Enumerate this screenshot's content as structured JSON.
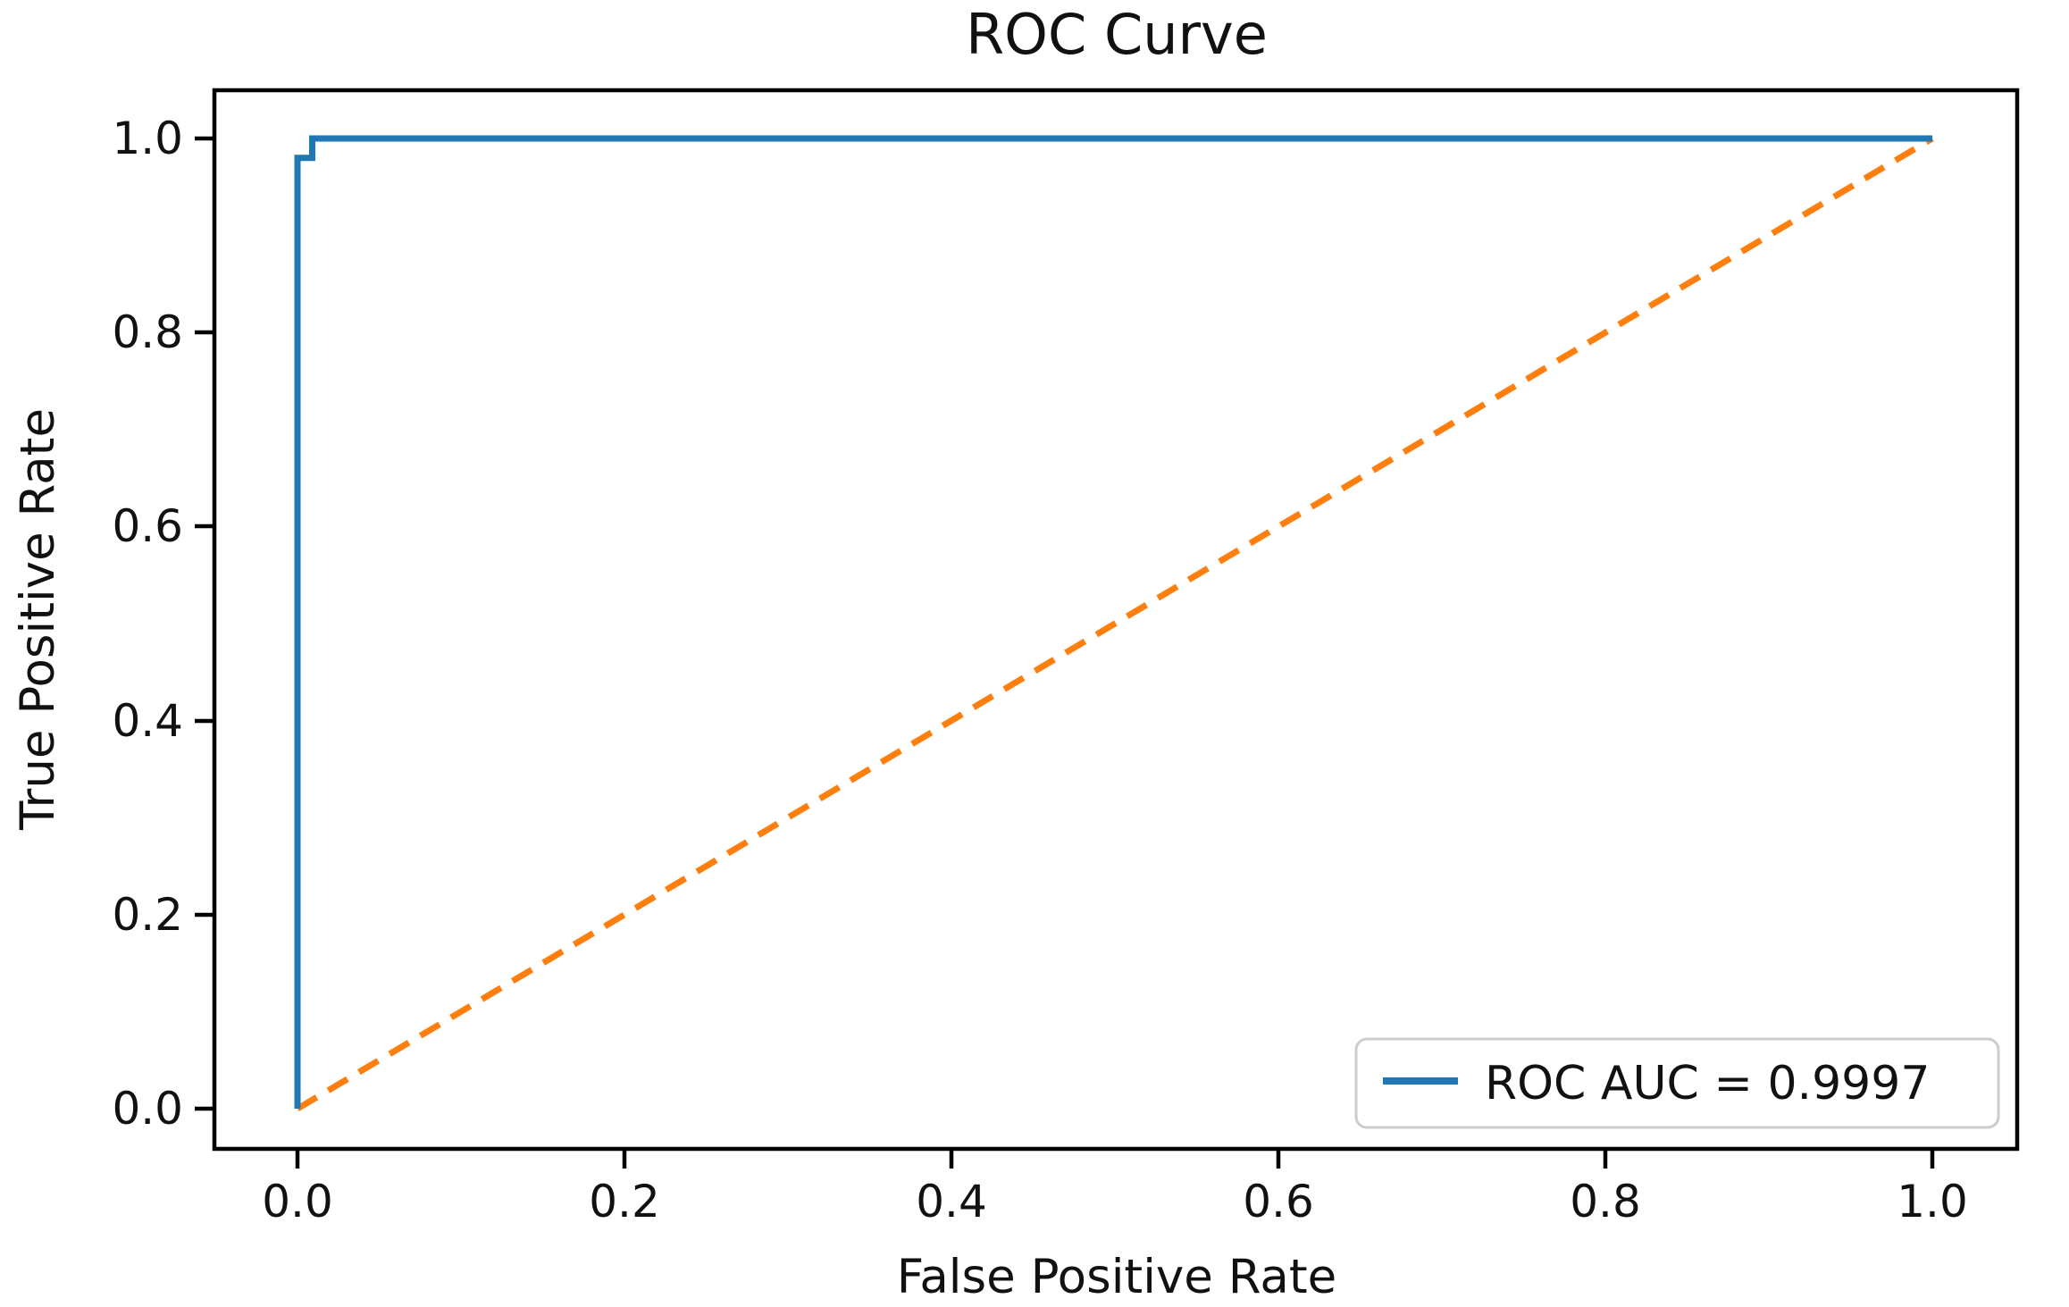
{
  "title": "ROC Curve",
  "axes": {
    "xlabel": "False Positive Rate",
    "ylabel": "True Positive Rate",
    "x_tick_labels": [
      "0.0",
      "0.2",
      "0.4",
      "0.6",
      "0.8",
      "1.0"
    ],
    "y_tick_labels": [
      "0.0",
      "0.2",
      "0.4",
      "0.6",
      "0.8",
      "1.0"
    ]
  },
  "legend": {
    "label": "ROC AUC = 0.9997",
    "position": "lower right",
    "edge_color": "#cccccc"
  },
  "colors": {
    "roc_curve": "#1f77b4",
    "chance_line": "#ff7f0e",
    "spine": "#000000"
  },
  "chart_data": {
    "type": "line",
    "title": "ROC Curve",
    "xlabel": "False Positive Rate",
    "ylabel": "True Positive Rate",
    "xlim": [
      -0.05,
      1.05
    ],
    "ylim": [
      -0.05,
      1.05
    ],
    "x_ticks": [
      0.0,
      0.2,
      0.4,
      0.6,
      0.8,
      1.0
    ],
    "y_ticks": [
      0.0,
      0.2,
      0.4,
      0.6,
      0.8,
      1.0
    ],
    "grid": false,
    "legend_position": "lower right",
    "series": [
      {
        "name": "ROC AUC = 0.9997",
        "color": "#1f77b4",
        "style": "solid",
        "auc": 0.9997,
        "x": [
          0.0,
          0.0,
          0.009,
          0.009,
          1.0
        ],
        "y": [
          0.0,
          0.98,
          0.98,
          1.0,
          1.0
        ]
      },
      {
        "name": "chance-diagonal",
        "color": "#ff7f0e",
        "style": "dashed",
        "x": [
          0.0,
          1.0
        ],
        "y": [
          0.0,
          1.0
        ]
      }
    ]
  }
}
